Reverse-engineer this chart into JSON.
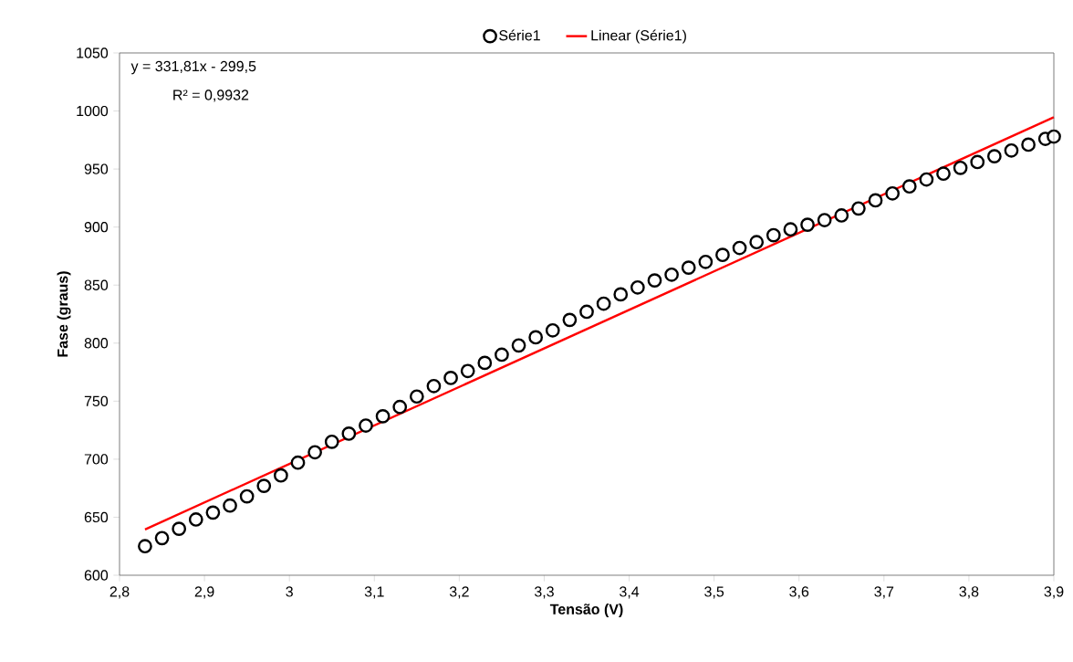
{
  "chart_data": {
    "type": "scatter",
    "xlabel": "Tensão (V)",
    "ylabel": "Fase (graus)",
    "xlim": [
      2.8,
      3.9
    ],
    "ylim": [
      600,
      1050
    ],
    "xticks": [
      {
        "value": 2.8,
        "label": "2,8"
      },
      {
        "value": 2.9,
        "label": "2,9"
      },
      {
        "value": 3,
        "label": "3"
      },
      {
        "value": 3.1,
        "label": "3,1"
      },
      {
        "value": 3.2,
        "label": "3,2"
      },
      {
        "value": 3.3,
        "label": "3,3"
      },
      {
        "value": 3.4,
        "label": "3,4"
      },
      {
        "value": 3.5,
        "label": "3,5"
      },
      {
        "value": 3.6,
        "label": "3,6"
      },
      {
        "value": 3.7,
        "label": "3,7"
      },
      {
        "value": 3.8,
        "label": "3,8"
      },
      {
        "value": 3.9,
        "label": "3,9"
      }
    ],
    "yticks": [
      600,
      650,
      700,
      750,
      800,
      850,
      900,
      950,
      1000,
      1050
    ],
    "legend": "top",
    "annotations": [
      "y = 331,81x - 299,5",
      "R² = 0,9932"
    ],
    "series": [
      {
        "name": "Série1",
        "color": "#000000",
        "x": [
          2.83,
          2.85,
          2.87,
          2.89,
          2.91,
          2.93,
          2.95,
          2.97,
          2.99,
          3.01,
          3.03,
          3.05,
          3.07,
          3.09,
          3.11,
          3.13,
          3.15,
          3.17,
          3.19,
          3.21,
          3.23,
          3.25,
          3.27,
          3.29,
          3.31,
          3.33,
          3.35,
          3.37,
          3.39,
          3.41,
          3.43,
          3.45,
          3.47,
          3.49,
          3.51,
          3.53,
          3.55,
          3.57,
          3.59,
          3.61,
          3.63,
          3.65,
          3.67,
          3.69,
          3.71,
          3.73,
          3.75,
          3.77,
          3.79,
          3.81,
          3.83,
          3.85,
          3.87,
          3.89,
          3.9
        ],
        "values": [
          625,
          632,
          640,
          648,
          654,
          660,
          668,
          677,
          686,
          697,
          706,
          715,
          722,
          729,
          737,
          745,
          754,
          763,
          770,
          776,
          783,
          790,
          798,
          805,
          811,
          820,
          827,
          834,
          842,
          848,
          854,
          859,
          865,
          870,
          876,
          882,
          887,
          893,
          898,
          902,
          906,
          910,
          916,
          923,
          929,
          935,
          941,
          946,
          951,
          956,
          961,
          966,
          971,
          976,
          978
        ]
      },
      {
        "name": "Linear (Série1)",
        "type": "line",
        "color": "#ff0000",
        "line_style": "solid",
        "x": [
          2.83,
          3.9
        ],
        "values": [
          639.5,
          994.6
        ]
      }
    ]
  }
}
